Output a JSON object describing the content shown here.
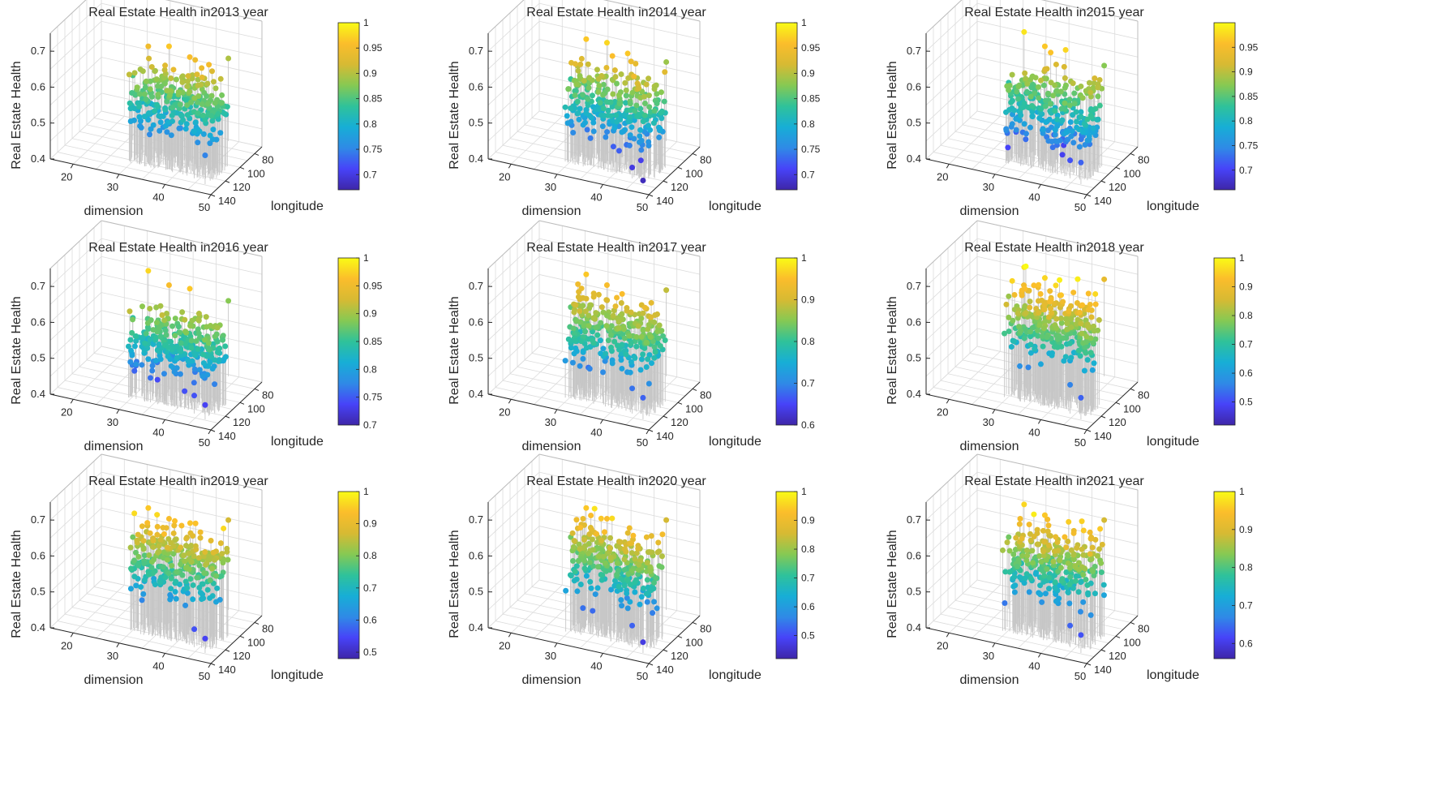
{
  "figure": {
    "layout": "3x3 grid of 3D scatter-stem plots with colorbars"
  },
  "colormap": [
    "#3e26a8",
    "#4743f8",
    "#2f8ae6",
    "#17aed6",
    "#2fc29a",
    "#86c953",
    "#d7ba33",
    "#fbbd2b",
    "#f9fb15"
  ],
  "chart_data": [
    {
      "type": "scatter",
      "title": "Real Estate Health in2013 year",
      "xlabel": "dimension",
      "ylabel": "longitude",
      "zlabel": "Real Estate Health",
      "xticks": [
        "20",
        "30",
        "40",
        "50"
      ],
      "yticks": [
        "140",
        "120",
        "100",
        "80"
      ],
      "zticks": [
        "0.4",
        "0.5",
        "0.6",
        "0.7"
      ],
      "xlim": [
        15,
        50
      ],
      "ylim": [
        70,
        140
      ],
      "zlim": [
        0.4,
        0.75
      ],
      "colorbar": {
        "ticks": [
          "0.7",
          "0.75",
          "0.8",
          "0.85",
          "0.9",
          "0.95",
          "1"
        ],
        "range": [
          0.67,
          1.0
        ]
      },
      "points": {
        "count": 280,
        "value_mean": 0.58,
        "value_spread": 0.04,
        "high_outliers": [
          0.68,
          0.7,
          0.69
        ],
        "low_outliers": [
          0.53,
          0.48
        ]
      }
    },
    {
      "type": "scatter",
      "title": "Real Estate Health in2014 year",
      "xlabel": "dimension",
      "ylabel": "longitude",
      "zlabel": "Real Estate Health",
      "xticks": [
        "20",
        "30",
        "40",
        "50"
      ],
      "yticks": [
        "140",
        "120",
        "100",
        "80"
      ],
      "zticks": [
        "0.4",
        "0.5",
        "0.6",
        "0.7"
      ],
      "xlim": [
        15,
        50
      ],
      "ylim": [
        70,
        140
      ],
      "zlim": [
        0.4,
        0.75
      ],
      "colorbar": {
        "ticks": [
          "0.7",
          "0.75",
          "0.8",
          "0.85",
          "0.9",
          "0.95",
          "1"
        ],
        "range": [
          0.67,
          1.0
        ]
      },
      "points": {
        "count": 280,
        "value_mean": 0.57,
        "value_spread": 0.045,
        "high_outliers": [
          0.7,
          0.71,
          0.7
        ],
        "low_outliers": [
          0.43,
          0.41
        ]
      }
    },
    {
      "type": "scatter",
      "title": "Real Estate Health in2015 year",
      "xlabel": "dimension",
      "ylabel": "longitude",
      "zlabel": "Real Estate Health",
      "xticks": [
        "20",
        "30",
        "40",
        "50"
      ],
      "yticks": [
        "140",
        "120",
        "100",
        "80"
      ],
      "zticks": [
        "0.4",
        "0.5",
        "0.6",
        "0.7"
      ],
      "xlim": [
        15,
        50
      ],
      "ylim": [
        70,
        140
      ],
      "zlim": [
        0.4,
        0.75
      ],
      "colorbar": {
        "ticks": [
          "0.7",
          "0.75",
          "0.8",
          "0.85",
          "0.9",
          "0.95"
        ],
        "range": [
          0.66,
          1.0
        ]
      },
      "points": {
        "count": 280,
        "value_mean": 0.56,
        "value_spread": 0.045,
        "high_outliers": [
          0.72,
          0.7,
          0.71
        ],
        "low_outliers": [
          0.45,
          0.46
        ]
      }
    },
    {
      "type": "scatter",
      "title": "Real Estate Health in2016 year",
      "xlabel": "dimension",
      "ylabel": "longitude",
      "zlabel": "Real Estate Health",
      "xticks": [
        "20",
        "30",
        "40",
        "50"
      ],
      "yticks": [
        "140",
        "120",
        "100",
        "80"
      ],
      "zticks": [
        "0.4",
        "0.5",
        "0.6",
        "0.7"
      ],
      "xlim": [
        15,
        50
      ],
      "ylim": [
        70,
        140
      ],
      "zlim": [
        0.4,
        0.75
      ],
      "colorbar": {
        "ticks": [
          "0.7",
          "0.75",
          "0.8",
          "0.85",
          "0.9",
          "0.95",
          "1"
        ],
        "range": [
          0.7,
          1.0
        ]
      },
      "points": {
        "count": 280,
        "value_mean": 0.56,
        "value_spread": 0.04,
        "high_outliers": [
          0.71,
          0.69,
          0.7
        ],
        "low_outliers": [
          0.45,
          0.44
        ]
      }
    },
    {
      "type": "scatter",
      "title": "Real Estate Health in2017 year",
      "xlabel": "dimension",
      "ylabel": "longitude",
      "zlabel": "Real Estate Health",
      "xticks": [
        "20",
        "30",
        "40",
        "50"
      ],
      "yticks": [
        "140",
        "120",
        "100",
        "80"
      ],
      "zticks": [
        "0.4",
        "0.5",
        "0.6",
        "0.7"
      ],
      "xlim": [
        15,
        50
      ],
      "ylim": [
        70,
        140
      ],
      "zlim": [
        0.4,
        0.75
      ],
      "colorbar": {
        "ticks": [
          "0.6",
          "0.7",
          "0.8",
          "0.9",
          "1"
        ],
        "range": [
          0.6,
          1.0
        ]
      },
      "points": {
        "count": 280,
        "value_mean": 0.59,
        "value_spread": 0.04,
        "high_outliers": [
          0.7,
          0.69
        ],
        "low_outliers": [
          0.47,
          0.46
        ]
      }
    },
    {
      "type": "scatter",
      "title": "Real Estate Health in2018 year",
      "xlabel": "dimension",
      "ylabel": "longitude",
      "zlabel": "Real Estate Health",
      "xticks": [
        "20",
        "30",
        "40",
        "50"
      ],
      "yticks": [
        "140",
        "120",
        "100",
        "80"
      ],
      "zticks": [
        "0.4",
        "0.5",
        "0.6",
        "0.7"
      ],
      "xlim": [
        15,
        50
      ],
      "ylim": [
        70,
        140
      ],
      "zlim": [
        0.4,
        0.75
      ],
      "colorbar": {
        "ticks": [
          "0.5",
          "0.6",
          "0.7",
          "0.8",
          "0.9",
          "1"
        ],
        "range": [
          0.42,
          1.0
        ]
      },
      "points": {
        "count": 280,
        "value_mean": 0.62,
        "value_spread": 0.045,
        "high_outliers": [
          0.72,
          0.71
        ],
        "low_outliers": [
          0.48,
          0.46
        ]
      }
    },
    {
      "type": "scatter",
      "title": "Real Estate Health in2019 year",
      "xlabel": "dimension",
      "ylabel": "longitude",
      "zlabel": "Real Estate Health",
      "xticks": [
        "20",
        "30",
        "40",
        "50"
      ],
      "yticks": [
        "140",
        "120",
        "100",
        "80"
      ],
      "zticks": [
        "0.4",
        "0.5",
        "0.6",
        "0.7"
      ],
      "xlim": [
        15,
        50
      ],
      "ylim": [
        70,
        140
      ],
      "zlim": [
        0.4,
        0.75
      ],
      "colorbar": {
        "ticks": [
          "0.5",
          "0.6",
          "0.7",
          "0.8",
          "0.9",
          "1"
        ],
        "range": [
          0.48,
          1.0
        ]
      },
      "points": {
        "count": 280,
        "value_mean": 0.6,
        "value_spread": 0.045,
        "high_outliers": [
          0.7,
          0.69
        ],
        "low_outliers": [
          0.45,
          0.44
        ]
      }
    },
    {
      "type": "scatter",
      "title": "Real Estate Health in2020 year",
      "xlabel": "dimension",
      "ylabel": "longitude",
      "zlabel": "Real Estate Health",
      "xticks": [
        "20",
        "30",
        "40",
        "50"
      ],
      "yticks": [
        "140",
        "120",
        "100",
        "80"
      ],
      "zticks": [
        "0.4",
        "0.5",
        "0.6",
        "0.7"
      ],
      "xlim": [
        15,
        50
      ],
      "ylim": [
        70,
        140
      ],
      "zlim": [
        0.4,
        0.75
      ],
      "colorbar": {
        "ticks": [
          "0.5",
          "0.6",
          "0.7",
          "0.8",
          "0.9",
          "1"
        ],
        "range": [
          0.42,
          1.0
        ]
      },
      "points": {
        "count": 280,
        "value_mean": 0.6,
        "value_spread": 0.045,
        "high_outliers": [
          0.7,
          0.69
        ],
        "low_outliers": [
          0.46,
          0.43
        ]
      }
    },
    {
      "type": "scatter",
      "title": "Real Estate Health in2021 year",
      "xlabel": "dimension",
      "ylabel": "longitude",
      "zlabel": "Real Estate Health",
      "xticks": [
        "20",
        "30",
        "40",
        "50"
      ],
      "yticks": [
        "140",
        "120",
        "100",
        "80"
      ],
      "zticks": [
        "0.4",
        "0.5",
        "0.6",
        "0.7"
      ],
      "xlim": [
        15,
        50
      ],
      "ylim": [
        70,
        140
      ],
      "zlim": [
        0.4,
        0.75
      ],
      "colorbar": {
        "ticks": [
          "0.6",
          "0.7",
          "0.8",
          "0.9",
          "1"
        ],
        "range": [
          0.56,
          1.0
        ]
      },
      "points": {
        "count": 280,
        "value_mean": 0.6,
        "value_spread": 0.045,
        "high_outliers": [
          0.71,
          0.7
        ],
        "low_outliers": [
          0.46,
          0.45
        ]
      }
    }
  ]
}
